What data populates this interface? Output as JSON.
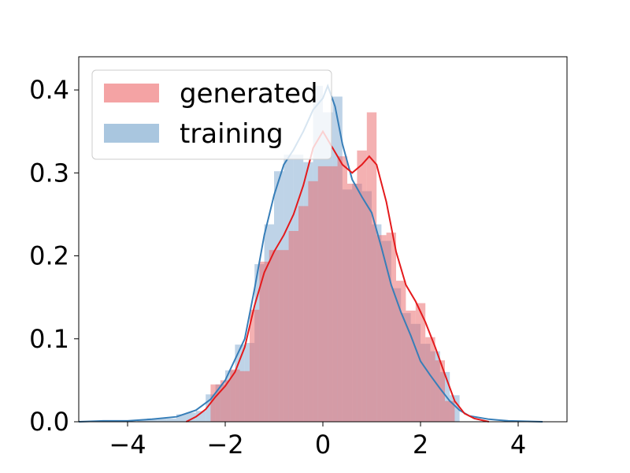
{
  "chart_data": {
    "type": "histogram",
    "xlim": [
      -5,
      5
    ],
    "ylim": [
      0,
      0.44
    ],
    "xticks": [
      -4,
      -2,
      0,
      2,
      4
    ],
    "xtick_labels": [
      "−4",
      "−2",
      "0",
      "2",
      "4"
    ],
    "yticks": [
      0.0,
      0.1,
      0.2,
      0.3,
      0.4
    ],
    "ytick_labels": [
      "0.0",
      "0.1",
      "0.2",
      "0.3",
      "0.4"
    ],
    "legend_position": "top-left",
    "grid": false,
    "series": [
      {
        "name": "training",
        "color": "#377eb8",
        "fill": "#a9c6df",
        "bins": [
          [
            -5.0,
            -4.8,
            0.0
          ],
          [
            -4.8,
            -4.6,
            0.0
          ],
          [
            -4.6,
            -4.4,
            0.0
          ],
          [
            -4.4,
            -4.2,
            0.0
          ],
          [
            -4.2,
            -4.0,
            0.0
          ],
          [
            -4.0,
            -3.8,
            0.0
          ],
          [
            -3.8,
            -3.6,
            0.002
          ],
          [
            -3.6,
            -3.4,
            0.004
          ],
          [
            -3.4,
            -3.2,
            0.004
          ],
          [
            -3.2,
            -3.0,
            0.004
          ],
          [
            -3.0,
            -2.8,
            0.009
          ],
          [
            -2.8,
            -2.6,
            0.011
          ],
          [
            -2.6,
            -2.4,
            0.013
          ],
          [
            -2.4,
            -2.2,
            0.033
          ],
          [
            -2.2,
            -2.0,
            0.045
          ],
          [
            -2.0,
            -1.8,
            0.062
          ],
          [
            -1.8,
            -1.6,
            0.093
          ],
          [
            -1.6,
            -1.4,
            0.095
          ],
          [
            -1.4,
            -1.2,
            0.19
          ],
          [
            -1.2,
            -1.0,
            0.238
          ],
          [
            -1.0,
            -0.8,
            0.302
          ],
          [
            -0.8,
            -0.6,
            0.322
          ],
          [
            -0.6,
            -0.4,
            0.322
          ],
          [
            -0.4,
            -0.2,
            0.313
          ],
          [
            -0.2,
            0.0,
            0.405
          ],
          [
            0.0,
            0.2,
            0.373
          ],
          [
            0.2,
            0.4,
            0.392
          ],
          [
            0.4,
            0.6,
            0.28
          ],
          [
            0.6,
            0.8,
            0.287
          ],
          [
            0.8,
            1.0,
            0.278
          ],
          [
            1.0,
            1.2,
            0.238
          ],
          [
            1.2,
            1.4,
            0.218
          ],
          [
            1.4,
            1.6,
            0.161
          ],
          [
            1.6,
            1.8,
            0.131
          ],
          [
            1.8,
            2.0,
            0.118
          ],
          [
            2.0,
            2.2,
            0.094
          ],
          [
            2.2,
            2.4,
            0.085
          ],
          [
            2.4,
            2.6,
            0.06
          ],
          [
            2.6,
            2.8,
            0.032
          ]
        ]
      },
      {
        "name": "generated",
        "color": "#e41a1c",
        "fill": "#f4a3a4",
        "bins": [
          [
            -2.3,
            -2.1,
            0.045
          ],
          [
            -2.1,
            -1.9,
            0.05
          ],
          [
            -1.9,
            -1.7,
            0.063
          ],
          [
            -1.7,
            -1.5,
            0.061
          ],
          [
            -1.5,
            -1.3,
            0.135
          ],
          [
            -1.3,
            -1.1,
            0.193
          ],
          [
            -1.1,
            -0.9,
            0.207
          ],
          [
            -0.9,
            -0.7,
            0.207
          ],
          [
            -0.7,
            -0.5,
            0.23
          ],
          [
            -0.5,
            -0.3,
            0.26
          ],
          [
            -0.3,
            -0.1,
            0.29
          ],
          [
            -0.1,
            0.1,
            0.308
          ],
          [
            0.1,
            0.3,
            0.308
          ],
          [
            0.3,
            0.5,
            0.32
          ],
          [
            0.5,
            0.7,
            0.287
          ],
          [
            0.7,
            0.9,
            0.327
          ],
          [
            0.9,
            1.1,
            0.373
          ],
          [
            1.1,
            1.3,
            0.225
          ],
          [
            1.3,
            1.5,
            0.228
          ],
          [
            1.5,
            1.7,
            0.17
          ],
          [
            1.7,
            1.9,
            0.134
          ],
          [
            1.9,
            2.1,
            0.143
          ],
          [
            2.1,
            2.3,
            0.102
          ],
          [
            2.3,
            2.5,
            0.074
          ],
          [
            2.5,
            2.7,
            0.025
          ]
        ]
      }
    ],
    "kde": [
      {
        "name": "training",
        "color": "#377eb8",
        "points": [
          [
            -5.0,
            0.0
          ],
          [
            -4.5,
            0.001
          ],
          [
            -4.0,
            0.001
          ],
          [
            -3.5,
            0.003
          ],
          [
            -3.0,
            0.006
          ],
          [
            -2.6,
            0.014
          ],
          [
            -2.3,
            0.027
          ],
          [
            -2.0,
            0.05
          ],
          [
            -1.8,
            0.075
          ],
          [
            -1.6,
            0.1
          ],
          [
            -1.4,
            0.16
          ],
          [
            -1.2,
            0.225
          ],
          [
            -1.0,
            0.273
          ],
          [
            -0.8,
            0.31
          ],
          [
            -0.6,
            0.328
          ],
          [
            -0.4,
            0.35
          ],
          [
            -0.2,
            0.376
          ],
          [
            0.0,
            0.39
          ],
          [
            0.1,
            0.405
          ],
          [
            0.25,
            0.38
          ],
          [
            0.4,
            0.335
          ],
          [
            0.6,
            0.292
          ],
          [
            0.8,
            0.271
          ],
          [
            1.0,
            0.252
          ],
          [
            1.2,
            0.21
          ],
          [
            1.4,
            0.165
          ],
          [
            1.6,
            0.132
          ],
          [
            1.8,
            0.104
          ],
          [
            2.0,
            0.073
          ],
          [
            2.2,
            0.056
          ],
          [
            2.4,
            0.04
          ],
          [
            2.6,
            0.025
          ],
          [
            2.8,
            0.014
          ],
          [
            3.0,
            0.007
          ],
          [
            3.4,
            0.003
          ],
          [
            3.8,
            0.001
          ],
          [
            4.5,
            0.0
          ]
        ]
      },
      {
        "name": "generated",
        "color": "#e41a1c",
        "points": [
          [
            -2.8,
            0.0
          ],
          [
            -2.6,
            0.006
          ],
          [
            -2.4,
            0.015
          ],
          [
            -2.2,
            0.03
          ],
          [
            -2.0,
            0.043
          ],
          [
            -1.8,
            0.06
          ],
          [
            -1.6,
            0.09
          ],
          [
            -1.4,
            0.14
          ],
          [
            -1.2,
            0.18
          ],
          [
            -1.0,
            0.205
          ],
          [
            -0.8,
            0.225
          ],
          [
            -0.6,
            0.25
          ],
          [
            -0.4,
            0.285
          ],
          [
            -0.2,
            0.33
          ],
          [
            0.0,
            0.35
          ],
          [
            0.2,
            0.33
          ],
          [
            0.4,
            0.31
          ],
          [
            0.6,
            0.3
          ],
          [
            0.8,
            0.31
          ],
          [
            0.95,
            0.32
          ],
          [
            1.1,
            0.31
          ],
          [
            1.3,
            0.265
          ],
          [
            1.5,
            0.205
          ],
          [
            1.7,
            0.165
          ],
          [
            1.9,
            0.145
          ],
          [
            2.1,
            0.12
          ],
          [
            2.3,
            0.09
          ],
          [
            2.5,
            0.057
          ],
          [
            2.7,
            0.025
          ],
          [
            2.9,
            0.01
          ],
          [
            3.1,
            0.004
          ],
          [
            3.4,
            0.0
          ]
        ]
      }
    ],
    "legend": [
      {
        "label": "generated",
        "swatch": "#f4a3a4"
      },
      {
        "label": "training",
        "swatch": "#a9c6df"
      }
    ]
  }
}
